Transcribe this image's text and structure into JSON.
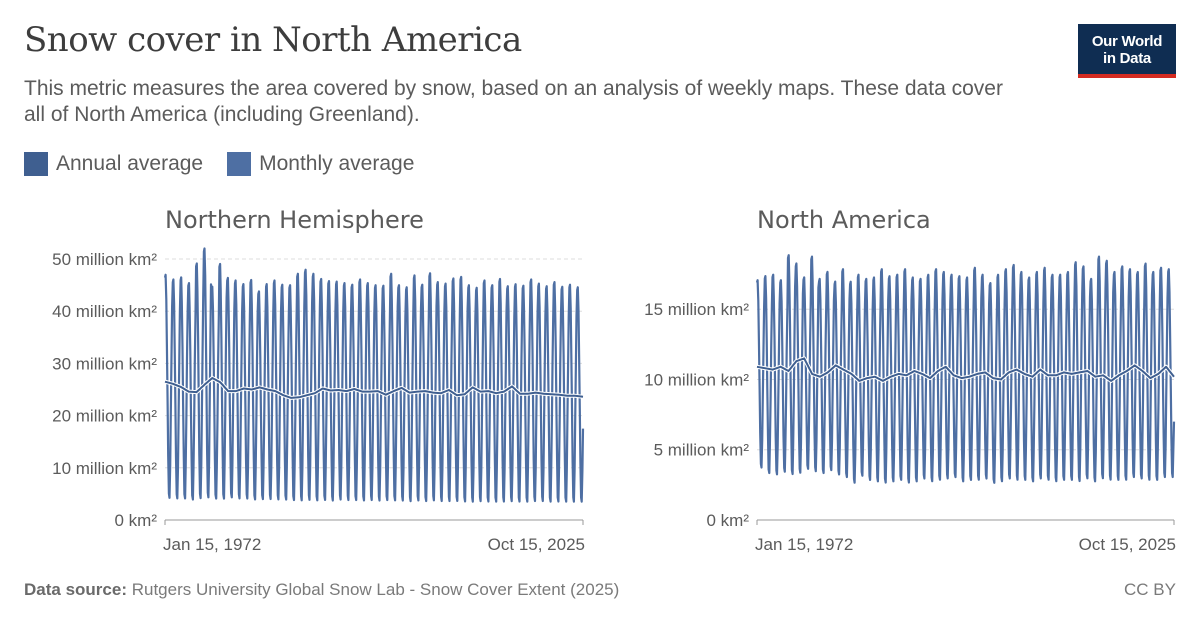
{
  "header": {
    "title": "Snow cover in North America",
    "subtitle": "This metric measures the area covered by snow, based on an analysis of weekly maps. These data cover all of North America (including Greenland).",
    "logo_line1": "Our World",
    "logo_line2": "in Data"
  },
  "legend": {
    "items": [
      {
        "label": "Annual average",
        "color": "#3f5f90"
      },
      {
        "label": "Monthly average",
        "color": "#4e6fa3"
      }
    ]
  },
  "footer": {
    "source_label": "Data source:",
    "source_text": "Rutgers University Global Snow Lab - Snow Cover Extent (2025)",
    "license": "CC BY"
  },
  "chart_data": [
    {
      "type": "line",
      "title": "Northern Hemisphere",
      "x_range": [
        "1972-01-15",
        "2025-10-15"
      ],
      "x_tick_labels": [
        "Jan 15, 1972",
        "Oct 15, 2025"
      ],
      "y_unit": "million km²",
      "ylim": [
        0,
        50
      ],
      "y_ticks": [
        0,
        10,
        20,
        30,
        40,
        50
      ],
      "y_tick_labels": [
        "0 km²",
        "10 million km²",
        "20 million km²",
        "30 million km²",
        "40 million km²",
        "50 million km²"
      ],
      "grid": "dashed horizontal",
      "series": [
        {
          "name": "Monthly average",
          "type": "seasonal_cycle",
          "annual_peak_million_km2": [
            47.4,
            46.5,
            46.9,
            45.8,
            49.6,
            52.5,
            45.1,
            49.5,
            46.8,
            46.3,
            45.6,
            46.4,
            44.2,
            45.6,
            46.3,
            45.5,
            45.4,
            47.6,
            48.4,
            47.6,
            46.6,
            46.2,
            46.1,
            45.8,
            45.5,
            46.5,
            45.8,
            45.4,
            45.3,
            47.6,
            45.4,
            45.0,
            47.3,
            45.5,
            47.7,
            46.0,
            45.7,
            46.7,
            47.0,
            45.4,
            44.9,
            46.3,
            45.4,
            46.6,
            45.2,
            45.6,
            45.3,
            46.5,
            45.7,
            45.2,
            46.0,
            45.1,
            45.5,
            45.0
          ],
          "annual_min_million_km2": [
            3.5,
            3.4,
            3.4,
            3.2,
            3.4,
            3.5,
            3.4,
            3.3,
            3.6,
            3.4,
            3.4,
            3.2,
            3.3,
            3.3,
            3.2,
            3.2,
            3.1,
            3.0,
            3.1,
            3.0,
            3.1,
            3.0,
            3.2,
            3.1,
            3.1,
            3.0,
            3.1,
            3.0,
            3.1,
            3.0,
            3.0,
            2.9,
            3.0,
            2.9,
            3.0,
            2.9,
            2.9,
            2.9,
            2.8,
            2.8,
            2.9,
            2.8,
            2.8,
            2.8,
            2.9,
            2.8,
            2.8,
            2.9,
            2.9,
            2.8,
            2.8,
            2.8,
            2.8,
            2.8
          ],
          "last_value_million_km2": 17.5
        },
        {
          "name": "Annual average",
          "values_million_km2": [
            26.5,
            26.1,
            25.5,
            24.6,
            24.5,
            25.9,
            27.2,
            26.4,
            24.7,
            24.7,
            25.2,
            25.0,
            25.4,
            25.0,
            24.7,
            23.9,
            23.4,
            23.5,
            23.9,
            24.3,
            25.2,
            24.8,
            24.9,
            24.7,
            25.1,
            24.6,
            24.6,
            24.7,
            24.0,
            24.7,
            25.3,
            24.4,
            24.6,
            24.7,
            24.4,
            24.3,
            24.9,
            23.9,
            24.1,
            25.4,
            24.6,
            24.7,
            24.3,
            24.6,
            25.6,
            24.2,
            24.2,
            24.4,
            24.2,
            24.1,
            24.0,
            23.8,
            23.8,
            23.6
          ]
        }
      ]
    },
    {
      "type": "line",
      "title": "North America",
      "x_range": [
        "1972-01-15",
        "2025-10-15"
      ],
      "x_tick_labels": [
        "Jan 15, 1972",
        "Oct 15, 2025"
      ],
      "y_unit": "million km²",
      "ylim": [
        0,
        19
      ],
      "y_ticks": [
        0,
        5,
        10,
        15
      ],
      "y_tick_labels": [
        "0 km²",
        "5 million km²",
        "10 million km²",
        "15 million km²"
      ],
      "series": [
        {
          "name": "Monthly average",
          "type": "seasonal_cycle",
          "annual_peak_million_km2": [
            17.2,
            17.5,
            17.6,
            17.2,
            19.0,
            18.4,
            17.4,
            18.9,
            17.3,
            17.8,
            17.1,
            18.0,
            17.1,
            17.6,
            17.3,
            17.4,
            18.0,
            17.5,
            17.6,
            18.0,
            17.4,
            17.3,
            17.6,
            18.0,
            17.8,
            17.6,
            17.5,
            17.4,
            18.1,
            17.6,
            17.0,
            17.6,
            18.0,
            18.3,
            17.8,
            17.4,
            17.8,
            18.1,
            17.6,
            17.6,
            17.8,
            18.5,
            18.2,
            17.3,
            18.9,
            18.6,
            17.8,
            18.2,
            18.0,
            17.8,
            18.4,
            17.8,
            18.1,
            18.0
          ],
          "annual_min_million_km2": [
            3.5,
            3.1,
            3.0,
            3.2,
            3.0,
            3.1,
            3.4,
            3.2,
            3.1,
            3.3,
            3.0,
            2.8,
            2.4,
            2.9,
            2.6,
            2.5,
            2.4,
            2.5,
            2.6,
            2.4,
            2.5,
            2.7,
            2.5,
            2.6,
            2.7,
            2.8,
            2.5,
            2.6,
            2.6,
            2.7,
            2.4,
            2.5,
            2.7,
            2.6,
            2.6,
            2.5,
            2.7,
            2.6,
            2.5,
            2.6,
            2.6,
            2.5,
            2.7,
            2.5,
            2.7,
            2.6,
            2.6,
            2.6,
            2.8,
            2.7,
            2.6,
            2.6,
            2.8,
            2.8
          ],
          "last_value_million_km2": 7.0
        },
        {
          "name": "Annual average",
          "values_million_km2": [
            10.9,
            10.8,
            10.7,
            10.9,
            10.6,
            11.3,
            11.5,
            10.4,
            10.2,
            10.5,
            11.0,
            10.7,
            10.4,
            9.9,
            10.1,
            10.2,
            9.9,
            10.2,
            10.4,
            10.3,
            10.6,
            10.4,
            10.1,
            10.6,
            10.9,
            10.3,
            10.1,
            10.2,
            10.4,
            10.5,
            10.1,
            10.0,
            10.5,
            10.7,
            10.4,
            10.2,
            10.7,
            10.3,
            10.3,
            10.5,
            10.4,
            10.5,
            10.6,
            10.2,
            10.3,
            9.9,
            10.3,
            10.6,
            11.0,
            10.6,
            10.1,
            10.4,
            10.9,
            10.2
          ]
        }
      ]
    }
  ]
}
